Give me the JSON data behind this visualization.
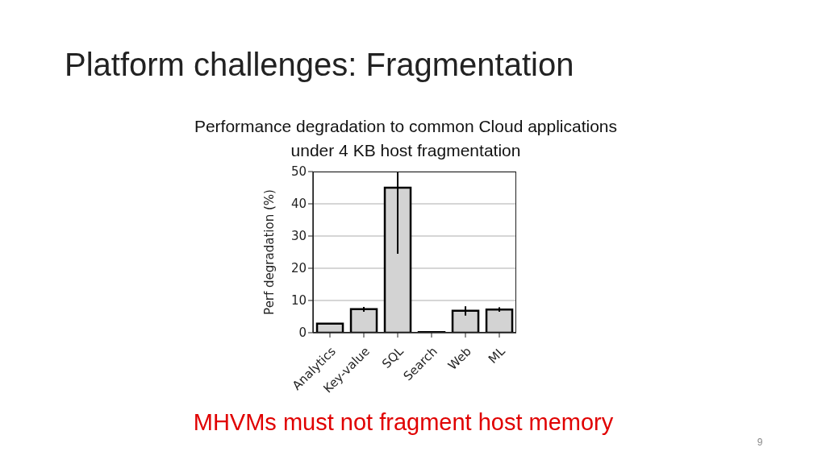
{
  "chart_data": {
    "type": "bar",
    "title": "Platform challenges: Fragmentation",
    "subtitle": "Performance degradation to common Cloud applications under 4 KB host fragmentation",
    "ylabel": "Perf degradation (%)",
    "categories": [
      "Analytics",
      "Key-value",
      "SQL",
      "Search",
      "Web",
      "ML"
    ],
    "values": [
      2.8,
      7.3,
      45,
      0.2,
      6.8,
      7.2
    ],
    "errors": [
      null,
      [
        6.5,
        8.0
      ],
      [
        24.5,
        50
      ],
      null,
      [
        5.3,
        8.2
      ],
      [
        6.5,
        7.9
      ]
    ],
    "color": "#d3d3d3",
    "ylim": [
      0,
      50
    ],
    "yticks": [
      0,
      10,
      20,
      30,
      40,
      50
    ],
    "grid": "y",
    "annotations": [
      "MHVMs must not fragment host memory",
      "9"
    ]
  }
}
